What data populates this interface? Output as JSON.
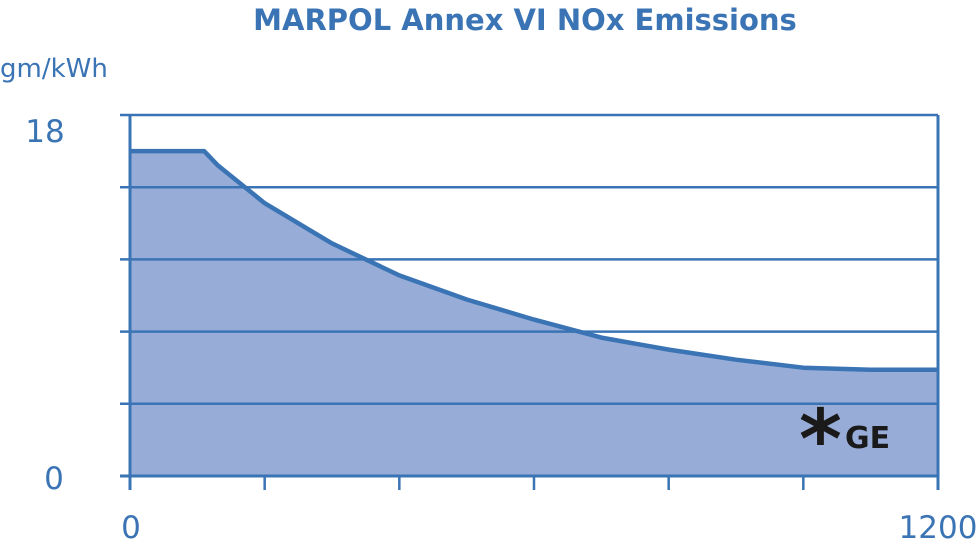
{
  "chart_data": {
    "type": "area",
    "title": "MARPOL Annex VI NOx Emissions",
    "ylabel": "gm/kWh",
    "xlabel": "",
    "xlim": [
      0,
      1200
    ],
    "ylim": [
      0,
      18
    ],
    "x_tick_labels": [
      "0",
      "1200"
    ],
    "y_tick_labels": [
      "0",
      "18"
    ],
    "gridlines_y": [
      3.6,
      7.2,
      10.8,
      14.4,
      18
    ],
    "x_minor_ticks": [
      200,
      400,
      600,
      800,
      1000
    ],
    "grid": true,
    "series": [
      {
        "x": [
          0,
          110,
          130,
          200,
          300,
          400,
          500,
          600,
          700,
          800,
          900,
          1000,
          1100,
          1200
        ],
        "y": [
          16.2,
          16.2,
          15.5,
          13.6,
          11.6,
          10.0,
          8.8,
          7.8,
          6.9,
          6.3,
          5.8,
          5.4,
          5.3,
          5.3
        ]
      }
    ],
    "colors": {
      "area": "#98acd8",
      "line": "#3a74b4",
      "axis": "#3a74b4",
      "text": "#3a74b4"
    },
    "annotation": {
      "symbol": "*",
      "text": "GE"
    }
  }
}
